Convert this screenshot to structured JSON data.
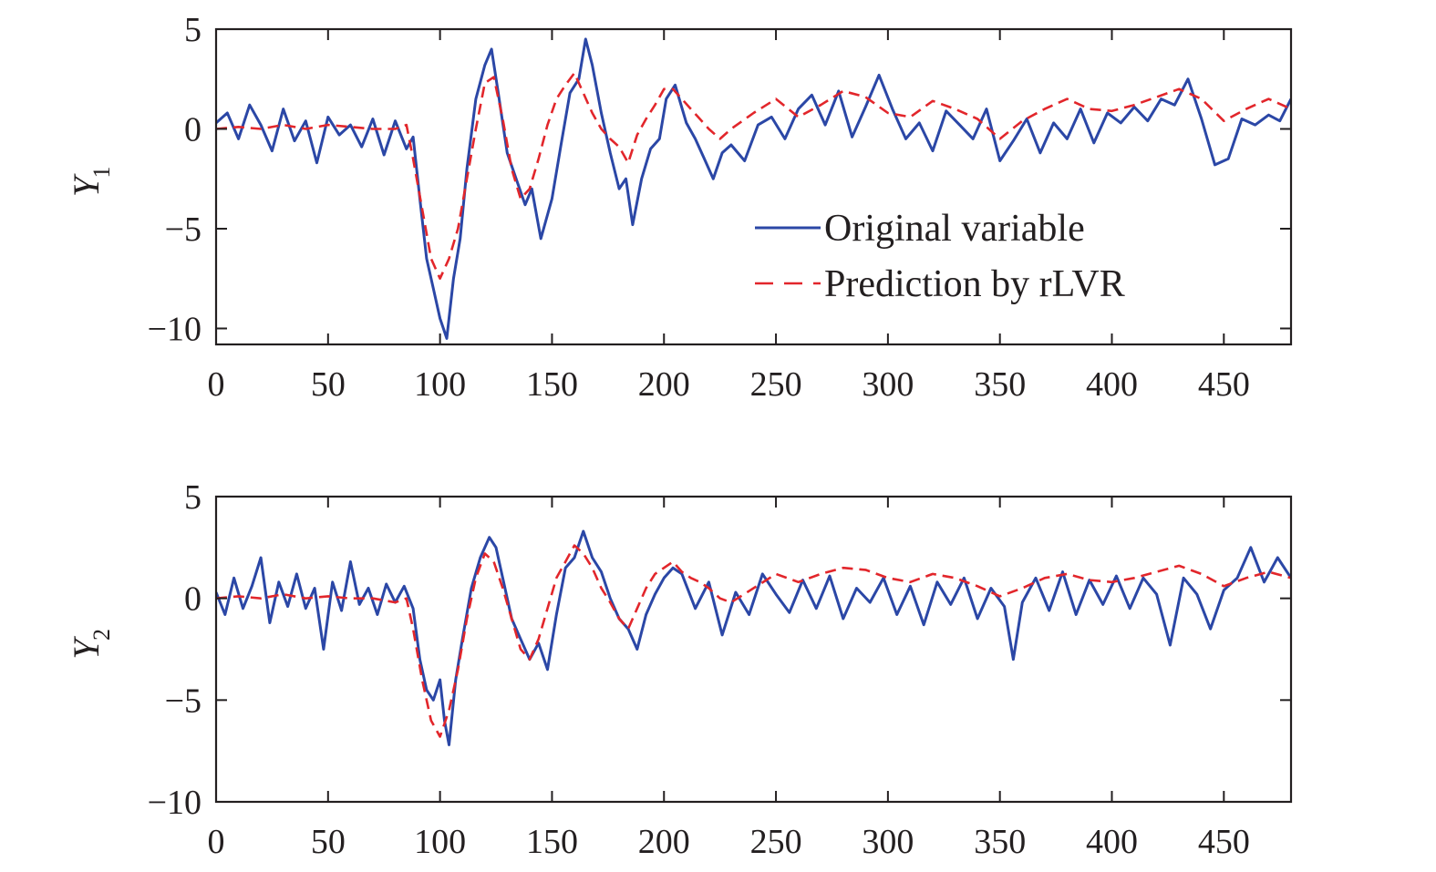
{
  "chart_data": [
    {
      "type": "line",
      "id": "top",
      "ylabel": "Y",
      "ylabel_sub": "1",
      "xlim": [
        0,
        480
      ],
      "ylim": [
        -10.8,
        5
      ],
      "xticks": [
        0,
        50,
        100,
        150,
        200,
        250,
        300,
        350,
        400,
        450
      ],
      "yticks": [
        5,
        0,
        -5,
        -10
      ],
      "xtick_labels": [
        "0",
        "50",
        "100",
        "150",
        "200",
        "250",
        "300",
        "350",
        "400",
        "450"
      ],
      "ytick_labels": [
        "5",
        "0",
        "−5",
        "−10"
      ],
      "legend": {
        "placement": "lower-right",
        "entries": [
          "Original variable",
          "Prediction by rLVR"
        ]
      },
      "series": [
        {
          "name": "Original variable",
          "color": "#2b47a6",
          "style": "solid",
          "x": [
            0,
            5,
            10,
            15,
            20,
            25,
            30,
            35,
            40,
            45,
            50,
            55,
            60,
            65,
            70,
            75,
            80,
            85,
            88,
            91,
            94,
            97,
            100,
            103,
            106,
            109,
            112,
            116,
            120,
            123,
            126,
            130,
            134,
            138,
            141,
            145,
            150,
            154,
            158,
            162,
            165,
            168,
            172,
            176,
            180,
            183,
            186,
            190,
            194,
            198,
            201,
            205,
            210,
            214,
            218,
            222,
            226,
            230,
            236,
            242,
            248,
            254,
            260,
            266,
            272,
            278,
            284,
            290,
            296,
            302,
            308,
            314,
            320,
            326,
            332,
            338,
            344,
            350,
            356,
            362,
            368,
            374,
            380,
            386,
            392,
            398,
            404,
            410,
            416,
            422,
            428,
            434,
            440,
            446,
            452,
            458,
            464,
            470,
            475,
            480
          ],
          "values": [
            0.3,
            0.8,
            -0.5,
            1.2,
            0.2,
            -1.1,
            1.0,
            -0.6,
            0.4,
            -1.7,
            0.6,
            -0.3,
            0.2,
            -0.9,
            0.5,
            -1.3,
            0.4,
            -1.0,
            -0.4,
            -3.5,
            -6.5,
            -8.0,
            -9.5,
            -10.5,
            -7.5,
            -5.5,
            -2.0,
            1.5,
            3.2,
            4.0,
            1.8,
            -1.2,
            -2.5,
            -3.8,
            -3.0,
            -5.5,
            -3.5,
            -0.8,
            1.8,
            2.5,
            4.5,
            3.2,
            0.8,
            -1.2,
            -3.0,
            -2.5,
            -4.8,
            -2.5,
            -1.0,
            -0.5,
            1.5,
            2.2,
            0.3,
            -0.5,
            -1.5,
            -2.5,
            -1.2,
            -0.8,
            -1.6,
            0.2,
            0.6,
            -0.5,
            1.0,
            1.7,
            0.2,
            1.9,
            -0.4,
            1.1,
            2.7,
            1.0,
            -0.5,
            0.3,
            -1.1,
            0.9,
            0.2,
            -0.5,
            1.0,
            -1.6,
            -0.6,
            0.5,
            -1.2,
            0.3,
            -0.5,
            1.0,
            -0.7,
            0.8,
            0.3,
            1.1,
            0.4,
            1.5,
            1.2,
            2.5,
            0.5,
            -1.8,
            -1.5,
            0.5,
            0.2,
            0.7,
            0.4,
            1.5
          ]
        },
        {
          "name": "Prediction by rLVR",
          "color": "#e2262b",
          "style": "dashed",
          "x": [
            0,
            10,
            20,
            30,
            40,
            50,
            60,
            70,
            80,
            85,
            88,
            92,
            96,
            100,
            104,
            108,
            112,
            116,
            120,
            124,
            128,
            132,
            136,
            140,
            144,
            148,
            152,
            156,
            160,
            164,
            168,
            172,
            176,
            180,
            184,
            188,
            192,
            196,
            200,
            204,
            208,
            212,
            216,
            220,
            225,
            230,
            240,
            250,
            260,
            270,
            280,
            290,
            300,
            310,
            320,
            330,
            340,
            350,
            360,
            370,
            380,
            390,
            400,
            410,
            420,
            430,
            440,
            450,
            460,
            470,
            480
          ],
          "values": [
            0.0,
            0.1,
            0.0,
            0.2,
            0.0,
            0.2,
            0.1,
            0.0,
            0.0,
            0.2,
            -1.5,
            -4.0,
            -6.5,
            -7.5,
            -6.5,
            -5.0,
            -2.5,
            0.0,
            2.3,
            2.6,
            0.5,
            -2.0,
            -3.5,
            -3.0,
            -1.5,
            0.2,
            1.5,
            2.2,
            2.8,
            1.8,
            0.8,
            0.0,
            -0.5,
            -0.9,
            -1.7,
            -0.3,
            0.5,
            1.2,
            2.0,
            2.0,
            1.5,
            1.0,
            0.5,
            0.0,
            -0.5,
            0.0,
            0.8,
            1.5,
            0.6,
            1.2,
            1.9,
            1.6,
            0.8,
            0.6,
            1.4,
            1.0,
            0.5,
            -0.5,
            0.4,
            1.0,
            1.5,
            1.0,
            0.9,
            1.2,
            1.6,
            2.0,
            1.5,
            0.4,
            1.0,
            1.5,
            1.0
          ]
        }
      ]
    },
    {
      "type": "line",
      "id": "bottom",
      "ylabel": "Y",
      "ylabel_sub": "2",
      "xlim": [
        0,
        480
      ],
      "ylim": [
        -10,
        5
      ],
      "xticks": [
        0,
        50,
        100,
        150,
        200,
        250,
        300,
        350,
        400,
        450
      ],
      "yticks": [
        5,
        0,
        -5,
        -10
      ],
      "xtick_labels": [
        "0",
        "50",
        "100",
        "150",
        "200",
        "250",
        "300",
        "350",
        "400",
        "450"
      ],
      "ytick_labels": [
        "5",
        "0",
        "−5",
        "−10"
      ],
      "series": [
        {
          "name": "Original variable",
          "color": "#2b47a6",
          "style": "solid",
          "x": [
            0,
            4,
            8,
            12,
            16,
            20,
            24,
            28,
            32,
            36,
            40,
            44,
            48,
            52,
            56,
            60,
            64,
            68,
            72,
            76,
            80,
            84,
            88,
            91,
            94,
            97,
            100,
            102,
            104,
            107,
            110,
            114,
            118,
            122,
            125,
            128,
            132,
            136,
            140,
            144,
            148,
            152,
            156,
            160,
            164,
            168,
            172,
            176,
            180,
            184,
            188,
            192,
            196,
            200,
            204,
            208,
            214,
            220,
            226,
            232,
            238,
            244,
            250,
            256,
            262,
            268,
            274,
            280,
            286,
            292,
            298,
            304,
            310,
            316,
            322,
            328,
            334,
            340,
            346,
            352,
            356,
            360,
            366,
            372,
            378,
            384,
            390,
            396,
            402,
            408,
            414,
            420,
            426,
            432,
            438,
            444,
            450,
            456,
            462,
            468,
            474,
            480
          ],
          "values": [
            0.3,
            -0.8,
            1.0,
            -0.5,
            0.6,
            2.0,
            -1.2,
            0.8,
            -0.4,
            1.2,
            -0.5,
            0.5,
            -2.5,
            0.8,
            -0.6,
            1.8,
            -0.3,
            0.5,
            -0.8,
            0.7,
            -0.2,
            0.6,
            -0.5,
            -3.0,
            -4.5,
            -5.0,
            -4.0,
            -6.0,
            -7.2,
            -4.0,
            -2.0,
            0.5,
            2.0,
            3.0,
            2.5,
            1.0,
            -1.0,
            -2.0,
            -3.0,
            -2.2,
            -3.5,
            -0.8,
            1.5,
            2.0,
            3.3,
            2.0,
            1.3,
            0.0,
            -1.0,
            -1.5,
            -2.5,
            -0.8,
            0.2,
            1.0,
            1.5,
            1.2,
            -0.5,
            0.8,
            -1.8,
            0.3,
            -0.8,
            1.2,
            0.2,
            -0.7,
            0.9,
            -0.5,
            1.1,
            -1.0,
            0.5,
            -0.2,
            1.0,
            -0.8,
            0.6,
            -1.3,
            0.8,
            -0.3,
            1.0,
            -1.0,
            0.5,
            -0.4,
            -3.0,
            -0.2,
            1.0,
            -0.6,
            1.3,
            -0.8,
            0.9,
            -0.3,
            1.1,
            -0.5,
            1.0,
            0.2,
            -2.3,
            1.0,
            0.2,
            -1.5,
            0.4,
            1.0,
            2.5,
            0.8,
            2.0,
            1.0
          ]
        },
        {
          "name": "Prediction by rLVR",
          "color": "#e2262b",
          "style": "dashed",
          "x": [
            0,
            10,
            20,
            30,
            40,
            50,
            60,
            70,
            80,
            85,
            88,
            92,
            96,
            100,
            104,
            108,
            112,
            116,
            120,
            124,
            128,
            132,
            136,
            140,
            144,
            148,
            152,
            156,
            160,
            164,
            168,
            172,
            176,
            180,
            184,
            188,
            192,
            196,
            200,
            204,
            208,
            212,
            216,
            220,
            225,
            230,
            240,
            250,
            260,
            270,
            280,
            290,
            300,
            310,
            320,
            330,
            340,
            350,
            360,
            370,
            380,
            390,
            400,
            410,
            420,
            430,
            440,
            450,
            460,
            470,
            480
          ],
          "values": [
            0.0,
            0.1,
            0.0,
            0.2,
            0.0,
            0.1,
            0.0,
            0.0,
            -0.2,
            0.0,
            -1.5,
            -4.0,
            -6.0,
            -6.8,
            -5.5,
            -3.5,
            -1.0,
            1.0,
            2.2,
            1.8,
            0.5,
            -1.0,
            -2.5,
            -3.0,
            -2.0,
            -0.5,
            1.0,
            1.8,
            2.6,
            2.2,
            1.5,
            0.5,
            -0.2,
            -1.0,
            -1.5,
            -0.5,
            0.5,
            1.2,
            1.5,
            1.8,
            1.3,
            1.0,
            0.8,
            0.5,
            0.0,
            -0.2,
            0.5,
            1.2,
            0.8,
            1.2,
            1.5,
            1.4,
            1.0,
            0.8,
            1.2,
            1.0,
            0.6,
            0.1,
            0.5,
            1.0,
            1.2,
            0.9,
            0.8,
            1.0,
            1.3,
            1.6,
            1.2,
            0.6,
            1.0,
            1.3,
            1.0
          ]
        }
      ]
    }
  ]
}
